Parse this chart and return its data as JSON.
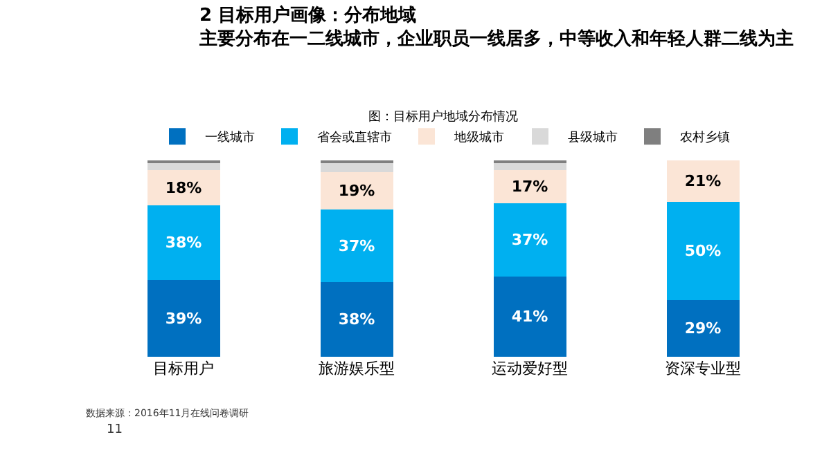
{
  "chart_data": {
    "type": "bar",
    "stacked": true,
    "title": "2 目标用户画像：分布地域",
    "subtitle": "主要分布在一二线城市，企业职员一线居多，中等收入和年轻人群二线为主",
    "annotations": [
      "图：目标用户地域分布情况",
      "数据来源：2016年11月在线问卷调研",
      "11"
    ],
    "categories": [
      "目标用户",
      "旅游娱乐型",
      "运动爱好型",
      "资深专业型"
    ],
    "series": [
      {
        "name": "一线城市",
        "color": "#0070c0",
        "values": [
          39,
          38,
          41,
          29
        ],
        "value_labels": [
          "39%",
          "38%",
          "41%",
          "29%"
        ]
      },
      {
        "name": "省会或直辖市",
        "color": "#00b0f0",
        "values": [
          38,
          37,
          37,
          50
        ],
        "value_labels": [
          "38%",
          "37%",
          "37%",
          "50%"
        ]
      },
      {
        "name": "地级城市",
        "color": "#fbe5d6",
        "values": [
          18,
          19,
          17,
          21
        ],
        "value_labels": [
          "18%",
          "19%",
          "17%",
          "21%"
        ]
      },
      {
        "name": "县级城市",
        "color": "#d9d9d9",
        "values": [
          4,
          5,
          4,
          0
        ],
        "value_labels": [
          null,
          null,
          null,
          null
        ]
      },
      {
        "name": "农村乡镇",
        "color": "#7f7f7f",
        "values": [
          1,
          1,
          1,
          0
        ],
        "value_labels": [
          null,
          null,
          null,
          null
        ]
      }
    ],
    "ylim": [
      0,
      100
    ],
    "tick_labels": "x",
    "grid": false,
    "legend": "top"
  }
}
